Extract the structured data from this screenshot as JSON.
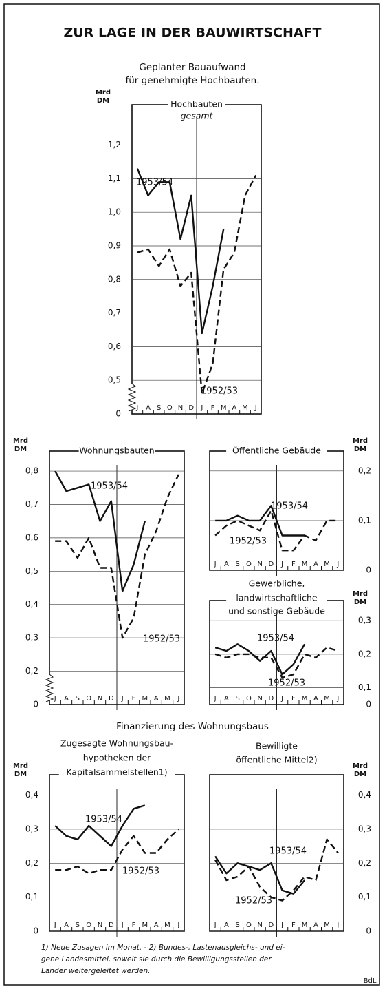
{
  "header": {
    "title": "ZUR LAGE IN DER BAUWIRTSCHAFT",
    "subtitle": [
      "Geplanter Bauaufwand",
      "für genehmigte Hochbauten."
    ]
  },
  "section_title": "Finanzierung des Wohnungsbaus",
  "footnote": [
    "1) Neue Zusagen im Monat. - 2) Bundes-, Lastenausgleichs- und ei-",
    "gene Landesmittel, soweit sie durch die Bewilligungsstellen der",
    "Länder weitergeleitet werden."
  ],
  "source": "BdL",
  "chart_data": [
    {
      "type": "line",
      "title": [
        "Hochbauten"
      ],
      "subtitle": "gesamt",
      "y_unit": [
        "Mrd",
        "DM"
      ],
      "axis_side": "left",
      "axis_break": true,
      "baseline_label": "0",
      "categories": [
        "J",
        "A",
        "S",
        "O",
        "N",
        "D",
        "J",
        "F",
        "M",
        "A",
        "M",
        "J"
      ],
      "ylim": [
        0.4,
        1.32
      ],
      "yticks": [
        {
          "value": 0.5,
          "label": "0,5"
        },
        {
          "value": 0.6,
          "label": "0,6"
        },
        {
          "value": 0.7,
          "label": "0,7"
        },
        {
          "value": 0.8,
          "label": "0,8"
        },
        {
          "value": 0.9,
          "label": "0,9"
        },
        {
          "value": 1.0,
          "label": "1,0"
        },
        {
          "value": 1.1,
          "label": "1,1"
        },
        {
          "value": 1.2,
          "label": "1,2"
        }
      ],
      "grid": true,
      "series": [
        {
          "name": "1953/54",
          "color": "#111111",
          "style": "solid",
          "values": [
            1.13,
            1.05,
            1.09,
            1.09,
            0.92,
            1.05,
            0.64,
            0.78,
            0.95,
            null,
            null,
            null
          ]
        },
        {
          "name": "1952/53",
          "color": "#111111",
          "style": "dashed",
          "values": [
            0.88,
            0.89,
            0.84,
            0.89,
            0.78,
            0.82,
            0.46,
            0.55,
            0.83,
            0.88,
            1.05,
            1.11
          ]
        }
      ]
    },
    {
      "type": "line",
      "title": [
        "Wohnungsbauten"
      ],
      "y_unit": [
        "Mrd",
        "DM"
      ],
      "axis_side": "left",
      "axis_break": true,
      "baseline_label": "0",
      "categories": [
        "J",
        "A",
        "S",
        "O",
        "N",
        "D",
        "J",
        "F",
        "M",
        "A",
        "M",
        "J"
      ],
      "ylim": [
        0.1,
        0.86
      ],
      "yticks": [
        {
          "value": 0.2,
          "label": "0,2"
        },
        {
          "value": 0.3,
          "label": "0,3"
        },
        {
          "value": 0.4,
          "label": "0,4"
        },
        {
          "value": 0.5,
          "label": "0,5"
        },
        {
          "value": 0.6,
          "label": "0,6"
        },
        {
          "value": 0.7,
          "label": "0,7"
        },
        {
          "value": 0.8,
          "label": "0,8"
        }
      ],
      "grid": true,
      "series": [
        {
          "name": "1953/54",
          "color": "#111111",
          "style": "solid",
          "values": [
            0.8,
            0.74,
            0.75,
            0.76,
            0.65,
            0.71,
            0.44,
            0.52,
            0.65,
            null,
            null,
            null
          ]
        },
        {
          "name": "1952/53",
          "color": "#111111",
          "style": "dashed",
          "values": [
            0.59,
            0.59,
            0.54,
            0.6,
            0.51,
            0.51,
            0.3,
            0.36,
            0.55,
            0.62,
            0.72,
            0.79
          ]
        }
      ]
    },
    {
      "type": "line",
      "title": [
        "Öffentliche Gebäude"
      ],
      "y_unit": [
        "Mrd",
        "DM"
      ],
      "axis_side": "right",
      "categories": [
        "J",
        "A",
        "S",
        "O",
        "N",
        "D",
        "J",
        "F",
        "M",
        "A",
        "M",
        "J"
      ],
      "ylim": [
        0,
        0.24
      ],
      "yticks": [
        0,
        {
          "value": 0.1,
          "label": "0,1"
        },
        {
          "value": 0.2,
          "label": "0,2"
        }
      ],
      "grid": true,
      "series": [
        {
          "name": "1953/54",
          "color": "#111111",
          "style": "solid",
          "values": [
            0.1,
            0.1,
            0.11,
            0.1,
            0.1,
            0.13,
            0.07,
            0.07,
            0.07,
            null,
            null,
            null
          ]
        },
        {
          "name": "1952/53",
          "color": "#111111",
          "style": "dashed",
          "values": [
            0.07,
            0.09,
            0.1,
            0.09,
            0.08,
            0.12,
            0.04,
            0.04,
            0.07,
            0.06,
            0.1,
            0.1
          ]
        }
      ]
    },
    {
      "type": "line",
      "title": [
        "Gewerbliche,",
        "landwirtschaftliche",
        "und sonstige Gebäude"
      ],
      "y_unit": [
        "Mrd",
        "DM"
      ],
      "axis_side": "right",
      "axis_break": false,
      "baseline_label": "0",
      "categories": [
        "J",
        "A",
        "S",
        "O",
        "N",
        "D",
        "J",
        "F",
        "M",
        "A",
        "M",
        "J"
      ],
      "ylim": [
        0.05,
        0.36
      ],
      "yticks": [
        {
          "value": 0.1,
          "label": "0,1"
        },
        {
          "value": 0.2,
          "label": "0,2"
        },
        {
          "value": 0.3,
          "label": "0,3"
        }
      ],
      "grid": true,
      "series": [
        {
          "name": "1953/54",
          "color": "#111111",
          "style": "solid",
          "values": [
            0.22,
            0.21,
            0.23,
            0.21,
            0.18,
            0.21,
            0.14,
            0.17,
            0.23,
            null,
            null,
            null
          ]
        },
        {
          "name": "1952/53",
          "color": "#111111",
          "style": "dashed",
          "values": [
            0.2,
            0.19,
            0.2,
            0.2,
            0.19,
            0.19,
            0.13,
            0.14,
            0.2,
            0.19,
            0.22,
            0.21
          ]
        }
      ]
    },
    {
      "type": "line",
      "title": [
        "Zugesagte Wohnungsbau-",
        "hypotheken der",
        "Kapitalsammelstellen1)"
      ],
      "y_unit": [
        "Mrd",
        "DM"
      ],
      "axis_side": "left",
      "categories": [
        "J",
        "A",
        "S",
        "O",
        "N",
        "D",
        "J",
        "F",
        "M",
        "A",
        "M",
        "J"
      ],
      "ylim": [
        0,
        0.46
      ],
      "yticks": [
        0,
        {
          "value": 0.1,
          "label": "0,1"
        },
        {
          "value": 0.2,
          "label": "0,2"
        },
        {
          "value": 0.3,
          "label": "0,3"
        },
        {
          "value": 0.4,
          "label": "0,4"
        }
      ],
      "grid": true,
      "series": [
        {
          "name": "1953/54",
          "color": "#111111",
          "style": "solid",
          "values": [
            0.31,
            0.28,
            0.27,
            0.31,
            0.28,
            0.25,
            0.31,
            0.36,
            0.37,
            null,
            null,
            null
          ]
        },
        {
          "name": "1952/53",
          "color": "#111111",
          "style": "dashed",
          "values": [
            0.18,
            0.18,
            0.19,
            0.17,
            0.18,
            0.18,
            0.24,
            0.28,
            0.23,
            0.23,
            0.27,
            0.3
          ]
        }
      ]
    },
    {
      "type": "line",
      "title": [
        "Bewilligte",
        "öffentliche Mittel2)"
      ],
      "y_unit": [
        "Mrd",
        "DM"
      ],
      "axis_side": "right",
      "categories": [
        "J",
        "A",
        "S",
        "O",
        "N",
        "D",
        "J",
        "F",
        "M",
        "A",
        "M",
        "J"
      ],
      "ylim": [
        0,
        0.46
      ],
      "yticks": [
        0,
        {
          "value": 0.1,
          "label": "0,1"
        },
        {
          "value": 0.2,
          "label": "0,2"
        },
        {
          "value": 0.3,
          "label": "0,3"
        },
        {
          "value": 0.4,
          "label": "0,4"
        }
      ],
      "grid": true,
      "series": [
        {
          "name": "1953/54",
          "color": "#111111",
          "style": "solid",
          "values": [
            0.22,
            0.17,
            0.2,
            0.19,
            0.18,
            0.2,
            0.12,
            0.11,
            0.15,
            null,
            null,
            null
          ]
        },
        {
          "name": "1952/53",
          "color": "#111111",
          "style": "dashed",
          "values": [
            0.21,
            0.15,
            0.16,
            0.19,
            0.13,
            0.1,
            0.09,
            0.12,
            0.16,
            0.15,
            0.27,
            0.23
          ]
        }
      ]
    }
  ]
}
